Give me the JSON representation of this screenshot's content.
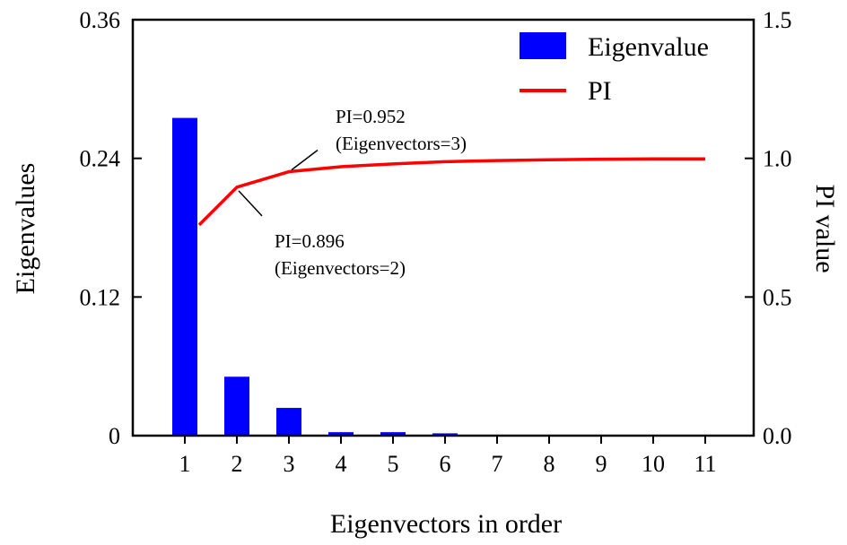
{
  "chart_data": {
    "type": "bar",
    "categories": [
      "1",
      "2",
      "3",
      "4",
      "5",
      "6",
      "7",
      "8",
      "9",
      "10",
      "11"
    ],
    "xlabel": "Eigenvectors in order",
    "ylabel": "Eigenvalues",
    "y2label": "PI value",
    "ylim": [
      0,
      0.36
    ],
    "y2lim": [
      0,
      1.5
    ],
    "yticks": [
      "0",
      "0.12",
      "0.24",
      "0.36"
    ],
    "y2ticks": [
      "0.0",
      "0.5",
      "1.0",
      "1.5"
    ],
    "legend_position": "top-right",
    "series": [
      {
        "name": "Eigenvalue",
        "kind": "bar",
        "axis": "left",
        "color": "#0000ff",
        "values": [
          0.275,
          0.051,
          0.024,
          0.003,
          0.003,
          0.002,
          0.0005,
          0.0003,
          0.0002,
          0.0001,
          0.0001
        ]
      },
      {
        "name": "PI",
        "kind": "line",
        "axis": "right",
        "color": "#ff0000",
        "values": [
          0.76,
          0.896,
          0.952,
          0.97,
          0.98,
          0.988,
          0.992,
          0.995,
          0.997,
          0.998,
          0.998
        ]
      }
    ],
    "annotations": [
      {
        "lines": [
          "PI=0.952",
          "(Eigenvectors=3)"
        ],
        "point": 3
      },
      {
        "lines": [
          "PI=0.896",
          "(Eigenvectors=2)"
        ],
        "point": 2
      }
    ]
  }
}
